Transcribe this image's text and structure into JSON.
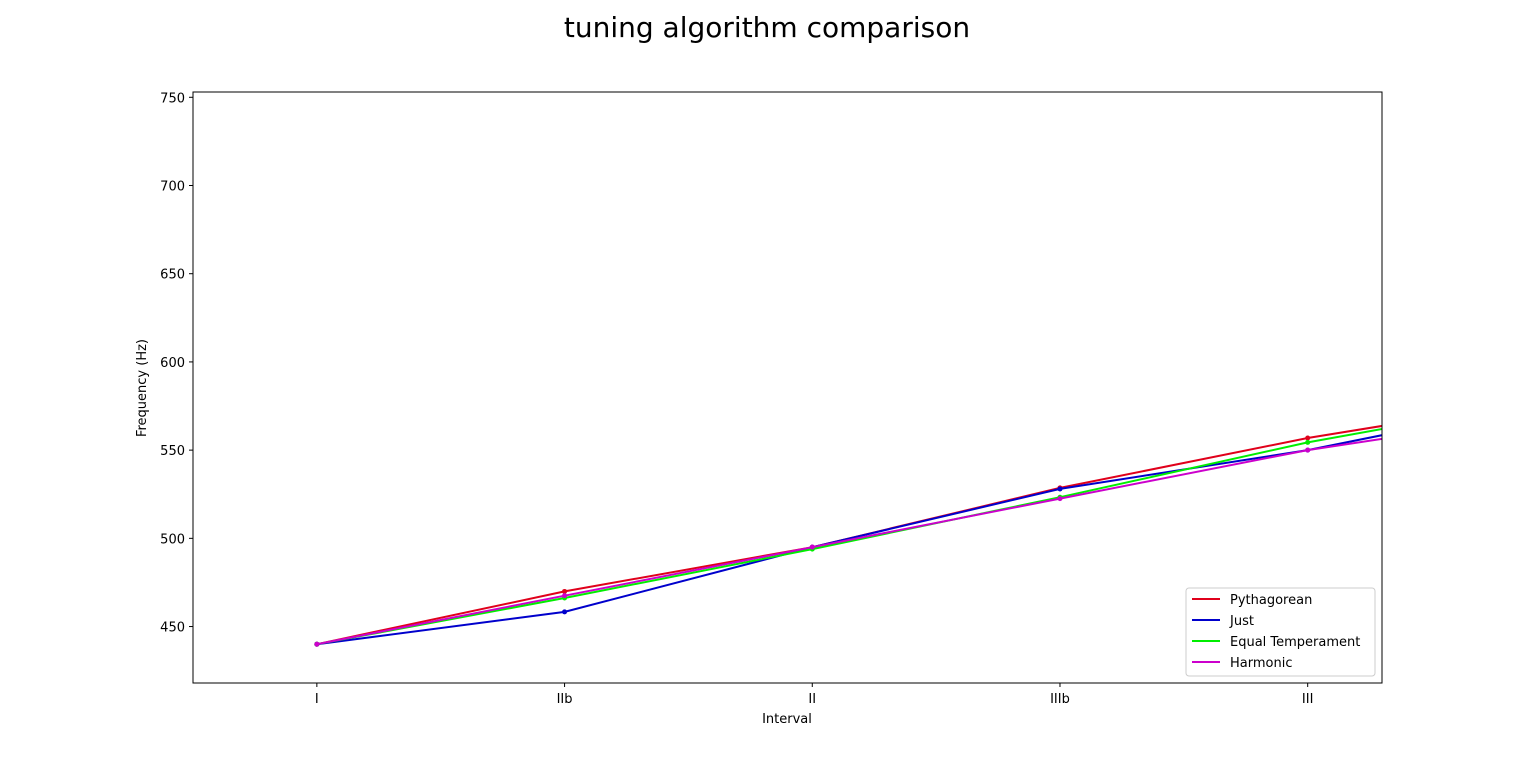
{
  "chart_data": {
    "type": "line",
    "title": "tuning algorithm comparison",
    "xlabel": "Interval",
    "ylabel": "Frequency (Hz)",
    "categories": [
      "I",
      "IIb",
      "II",
      "IIIb",
      "III"
    ],
    "x_extend_next": 5.3,
    "xlim": [
      -0.5,
      4.3
    ],
    "ylim": [
      418,
      753
    ],
    "yticks": [
      450,
      500,
      550,
      600,
      650,
      700,
      750
    ],
    "grid": false,
    "legend_position": "lower-right",
    "series": [
      {
        "name": "Pythagorean",
        "color": "#e0001b",
        "values": [
          440,
          469.9,
          495,
          528.6,
          556.9
        ],
        "next": 586.5
      },
      {
        "name": "Just",
        "color": "#0000cc",
        "values": [
          440,
          458.3,
          495,
          528,
          550
        ],
        "next": 586.7
      },
      {
        "name": "Equal Temperament",
        "color": "#00ee00",
        "values": [
          440,
          466.2,
          493.9,
          523.3,
          554.4
        ],
        "next": 587.3
      },
      {
        "name": "Harmonic",
        "color": "#cc00cc",
        "values": [
          440,
          467.5,
          495,
          522.5,
          550
        ],
        "next": 577.5
      }
    ]
  }
}
